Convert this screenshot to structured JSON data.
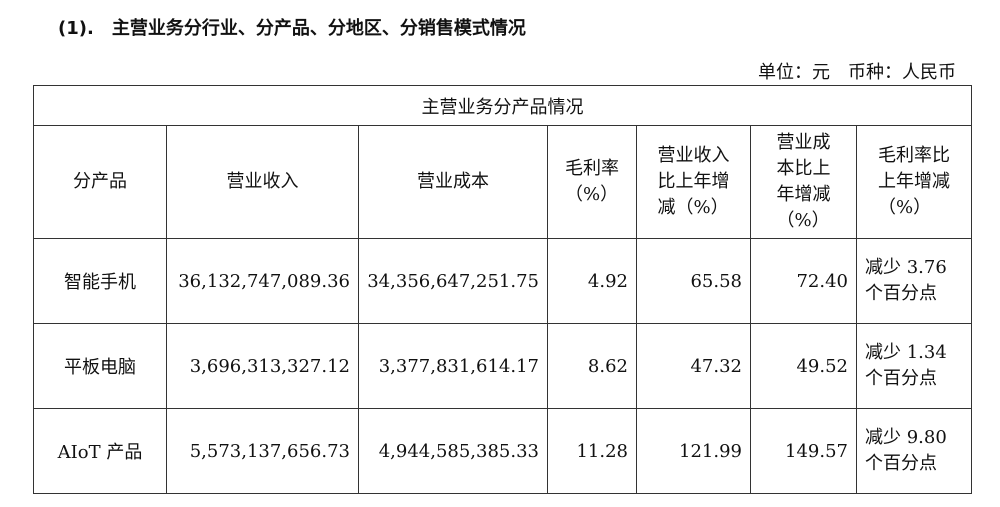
{
  "heading": "(1).　主营业务分行业、分产品、分地区、分销售模式情况",
  "unit_line": "单位：元　币种：人民币",
  "table": {
    "caption": "主营业务分产品情况",
    "headers": [
      "分产品",
      "营业收入",
      "营业成本",
      "毛利率（%）",
      "营业收入比上年增减（%）",
      "营业成本比上年增减（%）",
      "毛利率比上年增减（%）"
    ],
    "rows": [
      [
        "智能手机",
        "36,132,747,089.36",
        "34,356,647,251.75",
        "4.92",
        "65.58",
        "72.40",
        "减少 3.76 个百分点"
      ],
      [
        "平板电脑",
        "3,696,313,327.12",
        "3,377,831,614.17",
        "8.62",
        "47.32",
        "49.52",
        "减少 1.34 个百分点"
      ],
      [
        "AIoT 产品",
        "5,573,137,656.73",
        "4,944,585,385.33",
        "11.28",
        "121.99",
        "149.57",
        "减少 9.80 个百分点"
      ]
    ]
  }
}
